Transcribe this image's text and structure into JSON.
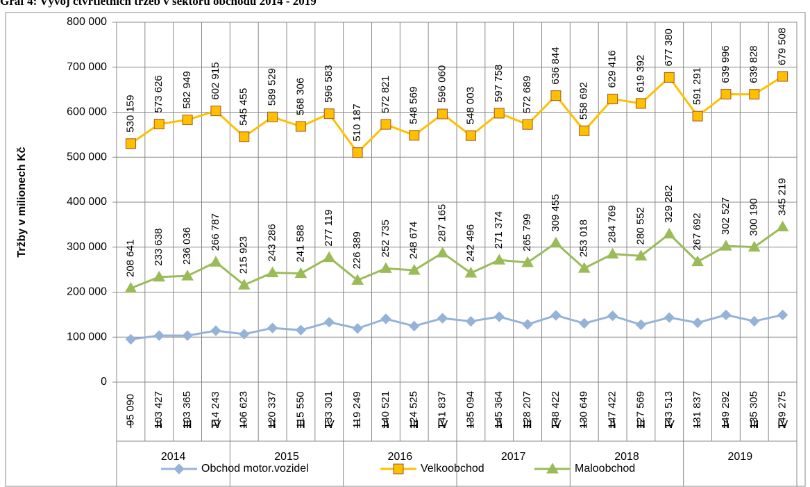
{
  "chart_data": {
    "type": "line",
    "title": "Graf 4: Vývoj čtvrtletních tržeb v sektoru obchodu 2014 - 2019",
    "y_label": "Tržby v milionech Kč",
    "categories": [
      "I",
      "II",
      "III",
      "IV",
      "I",
      "II",
      "III",
      "IV",
      "I",
      "II",
      "III",
      "IV",
      "I",
      "II",
      "III",
      "IV",
      "I",
      "II",
      "III",
      "IV",
      "I",
      "II",
      "III",
      "IV"
    ],
    "years": [
      "2014",
      "2015",
      "2016",
      "2017",
      "2018",
      "2019"
    ],
    "ylim": [
      0,
      800000
    ],
    "yticks": [
      0,
      {
        "value": 100000,
        "label": "100 000"
      },
      {
        "value": 200000,
        "label": "200 000"
      },
      {
        "value": 300000,
        "label": "300 000"
      },
      {
        "value": 400000,
        "label": "400 000"
      },
      {
        "value": 500000,
        "label": "500 000"
      },
      {
        "value": 600000,
        "label": "600 000"
      },
      {
        "value": 700000,
        "label": "700 000"
      },
      {
        "value": 800000,
        "label": "800 000"
      }
    ],
    "grid": true,
    "legend": "bottom",
    "series": [
      {
        "name": "Obchod motor.vozidel",
        "color": "#95b3d7",
        "marker": "diamond",
        "values": [
          95090,
          103427,
          103365,
          114243,
          106623,
          120337,
          115550,
          133301,
          119249,
          140521,
          124525,
          141837,
          135094,
          145364,
          128207,
          148422,
          130649,
          147422,
          127569,
          143513,
          131837,
          149292,
          135305,
          149275
        ],
        "value_labels": [
          "95 090",
          "103 427",
          "103 365",
          "114 243",
          "106 623",
          "120 337",
          "115 550",
          "133 301",
          "119 249",
          "140 521",
          "124 525",
          "141 837",
          "135 094",
          "145 364",
          "128 207",
          "148 422",
          "130 649",
          "147 422",
          "127 569",
          "143 513",
          "131 837",
          "149 292",
          "135 305",
          "149 275"
        ]
      },
      {
        "name": "Velkoobchod",
        "color": "#ffc000",
        "marker": "square",
        "values": [
          530159,
          573626,
          582949,
          602915,
          545455,
          589529,
          568306,
          596583,
          510187,
          572821,
          548569,
          596060,
          548003,
          597758,
          572689,
          636844,
          558692,
          629416,
          619392,
          677380,
          591291,
          639996,
          639828,
          679508
        ],
        "value_labels": [
          "530 159",
          "573 626",
          "582 949",
          "602 915",
          "545 455",
          "589 529",
          "568 306",
          "596 583",
          "510 187",
          "572 821",
          "548 569",
          "596 060",
          "548 003",
          "597 758",
          "572 689",
          "636 844",
          "558 692",
          "629 416",
          "619 392",
          "677 380",
          "591 291",
          "639 996",
          "639 828",
          "679 508"
        ]
      },
      {
        "name": "Maloobchod",
        "color": "#9bbb59",
        "marker": "triangle",
        "values": [
          208641,
          233638,
          236036,
          266787,
          215923,
          243286,
          241588,
          277119,
          226389,
          252735,
          248674,
          287165,
          242496,
          271374,
          265799,
          309455,
          253018,
          284769,
          280552,
          329282,
          267692,
          302527,
          300190,
          345219
        ],
        "value_labels": [
          "208 641",
          "233 638",
          "236 036",
          "266 787",
          "215 923",
          "243 286",
          "241 588",
          "277 119",
          "226 389",
          "252 735",
          "248 674",
          "287 165",
          "242 496",
          "271 374",
          "265 799",
          "309 455",
          "253 018",
          "284 769",
          "280 552",
          "329 282",
          "267 692",
          "302 527",
          "300 190",
          "345 219"
        ]
      }
    ]
  }
}
